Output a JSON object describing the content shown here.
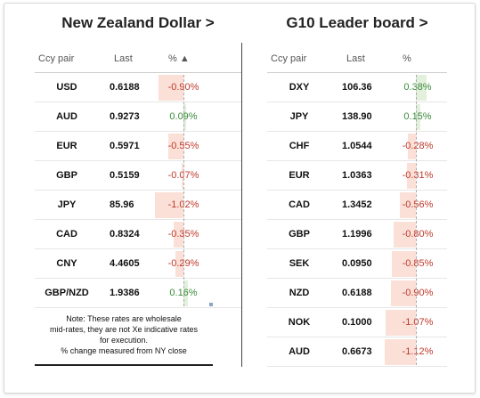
{
  "left_panel": {
    "title": "New Zealand Dollar >",
    "headers": {
      "pair": "Ccy pair",
      "last": "Last",
      "pct": "% ▲"
    },
    "rows": [
      {
        "pair": "USD",
        "last": "0.6188",
        "pct": "-0.90%",
        "value": -0.9
      },
      {
        "pair": "AUD",
        "last": "0.9273",
        "pct": "0.09%",
        "value": 0.09
      },
      {
        "pair": "EUR",
        "last": "0.5971",
        "pct": "-0.55%",
        "value": -0.55
      },
      {
        "pair": "GBP",
        "last": "0.5159",
        "pct": "-0.07%",
        "value": -0.07
      },
      {
        "pair": "JPY",
        "last": "85.96",
        "pct": "-1.02%",
        "value": -1.02
      },
      {
        "pair": "CAD",
        "last": "0.8324",
        "pct": "-0.35%",
        "value": -0.35
      },
      {
        "pair": "CNY",
        "last": "4.4605",
        "pct": "-0.29%",
        "value": -0.29
      },
      {
        "pair": "GBP/NZD",
        "last": "1.9386",
        "pct": "0.16%",
        "value": 0.16
      }
    ],
    "note_lines": [
      "Note: These rates are wholesale",
      "mid-rates, they are not Xe indicative rates",
      "for execution.",
      "% change measured from NY close"
    ]
  },
  "right_panel": {
    "title": "G10 Leader board >",
    "headers": {
      "pair": "Ccy pair",
      "last": "Last",
      "pct": "%"
    },
    "rows": [
      {
        "pair": "DXY",
        "last": "106.36",
        "pct": "0.38%",
        "value": 0.38
      },
      {
        "pair": "JPY",
        "last": "138.90",
        "pct": "0.15%",
        "value": 0.15
      },
      {
        "pair": "CHF",
        "last": "1.0544",
        "pct": "-0.28%",
        "value": -0.28
      },
      {
        "pair": "EUR",
        "last": "1.0363",
        "pct": "-0.31%",
        "value": -0.31
      },
      {
        "pair": "CAD",
        "last": "1.3452",
        "pct": "-0.56%",
        "value": -0.56
      },
      {
        "pair": "GBP",
        "last": "1.1996",
        "pct": "-0.80%",
        "value": -0.8
      },
      {
        "pair": "SEK",
        "last": "0.0950",
        "pct": "-0.85%",
        "value": -0.85
      },
      {
        "pair": "NZD",
        "last": "0.6188",
        "pct": "-0.90%",
        "value": -0.9
      },
      {
        "pair": "NOK",
        "last": "0.1000",
        "pct": "-1.07%",
        "value": -1.07
      },
      {
        "pair": "AUD",
        "last": "0.6673",
        "pct": "-1.12%",
        "value": -1.12
      }
    ]
  },
  "colors": {
    "negative_text": "#c0392b",
    "positive_text": "#3a8a3a",
    "negative_bar": "#fbe0d8",
    "positive_bar": "#e2f0dc"
  }
}
